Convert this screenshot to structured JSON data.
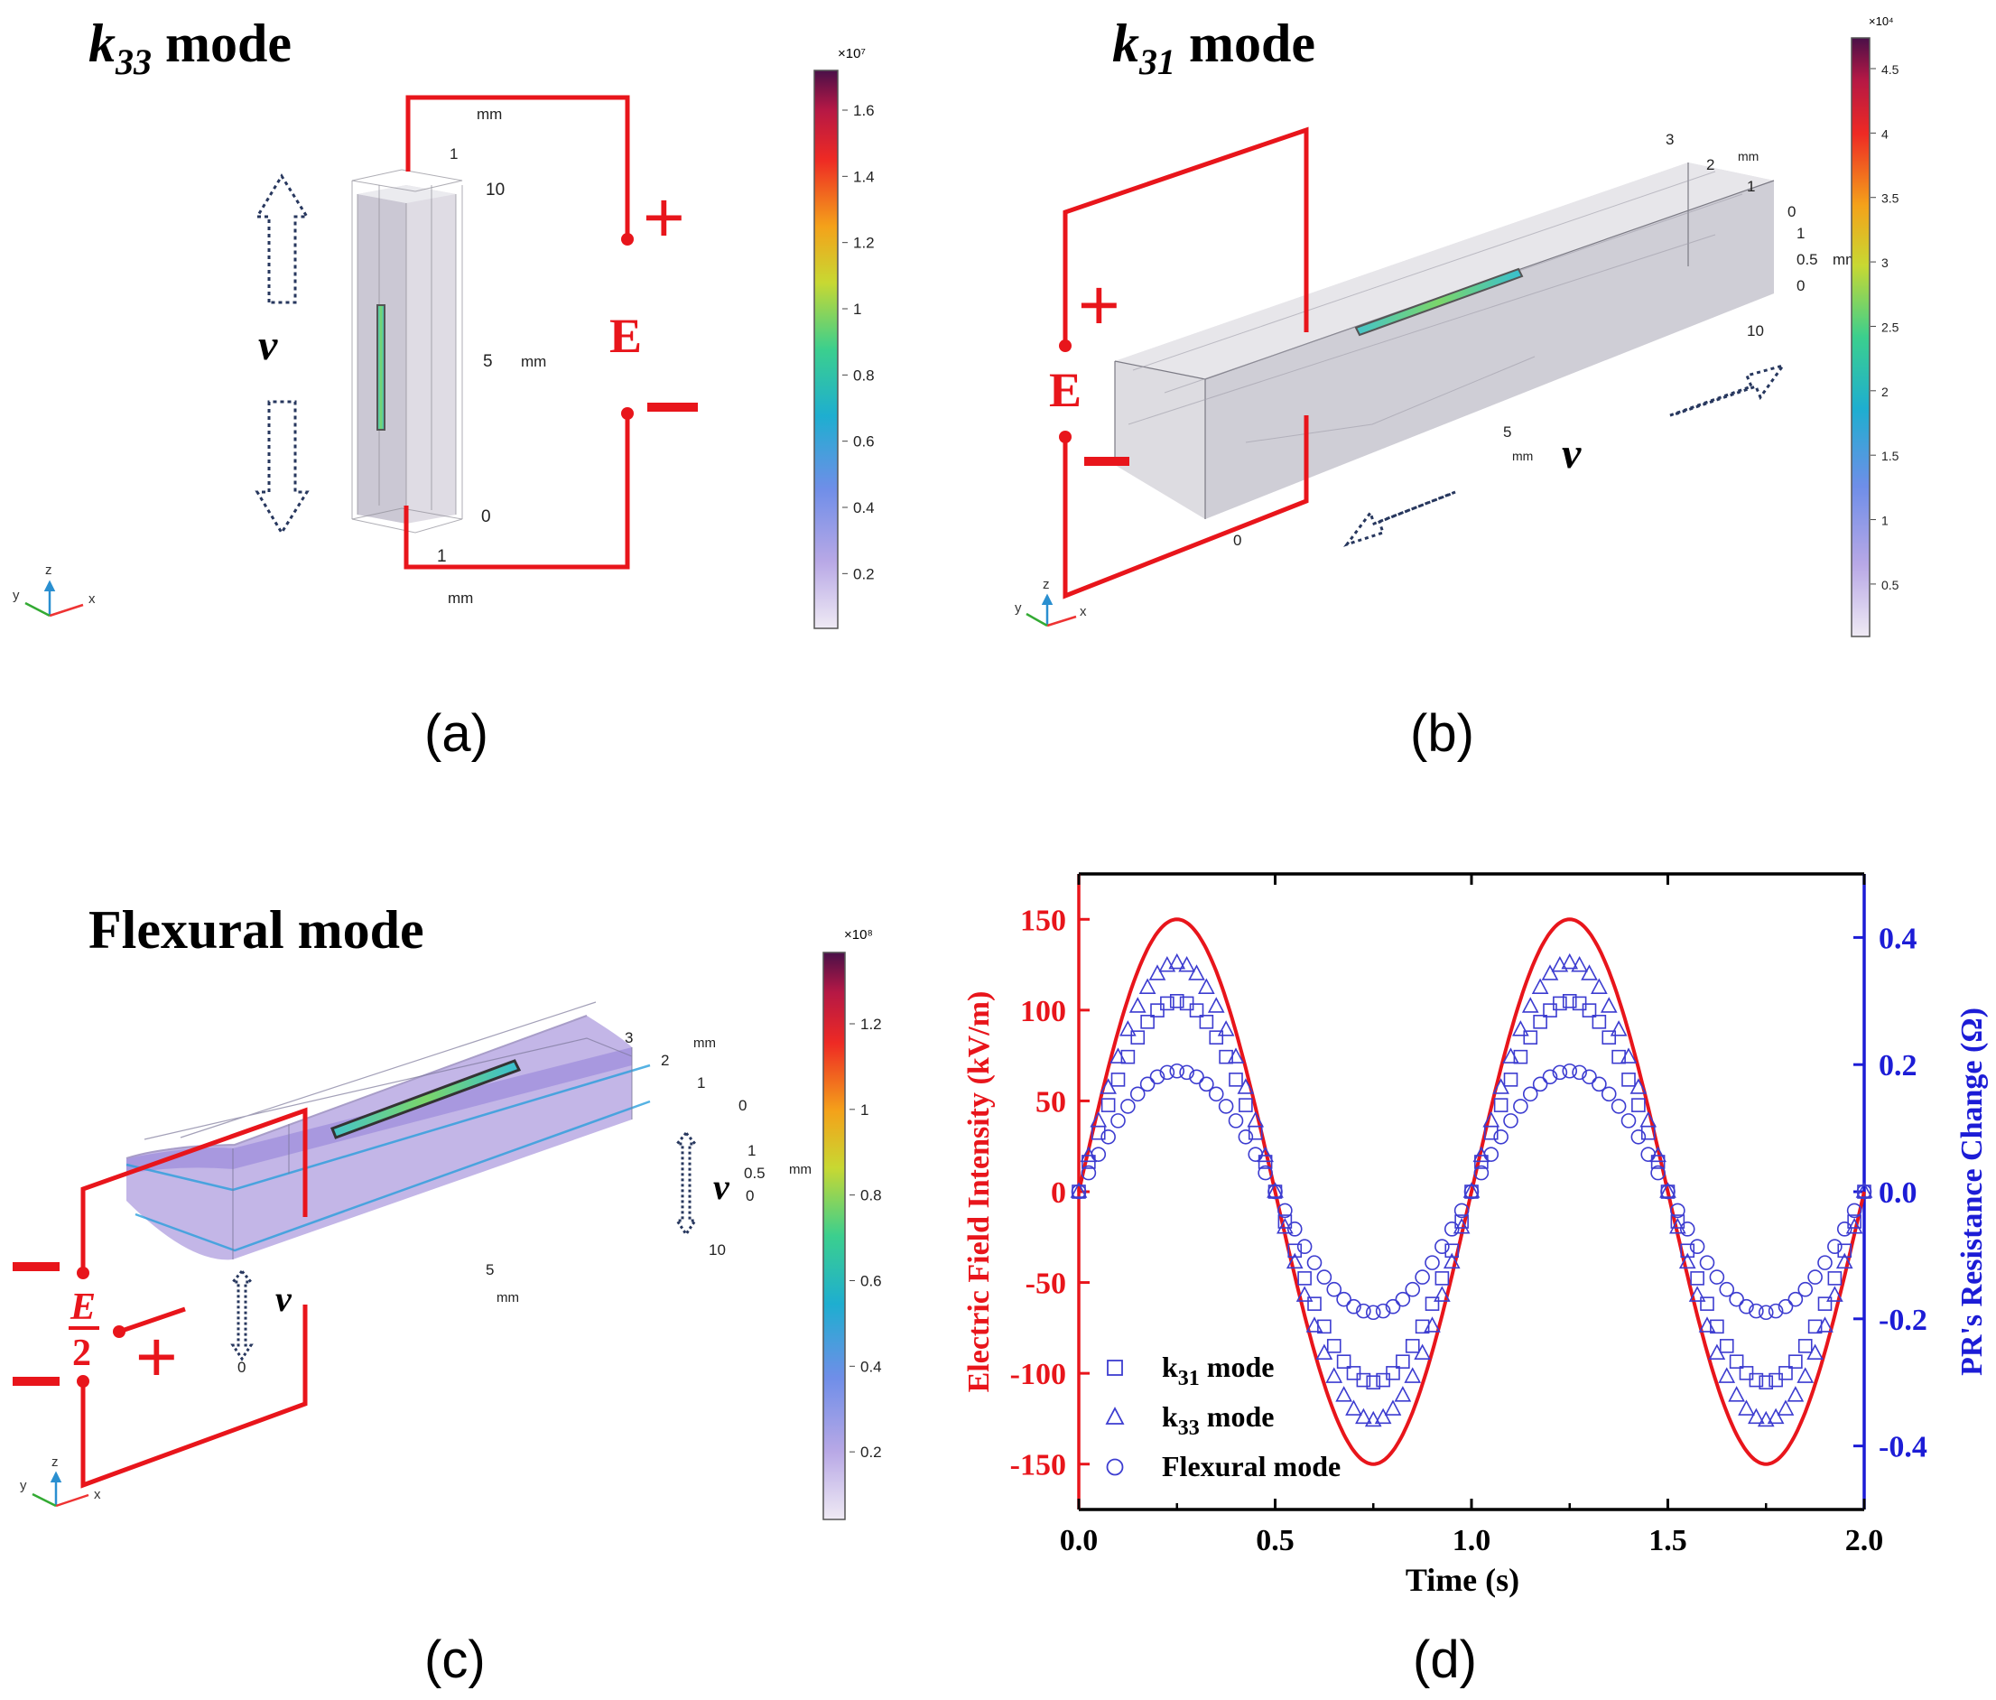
{
  "panels": {
    "a": {
      "title_k": "k",
      "title_sub": "33",
      "title_rest": " mode",
      "caption": "(a)",
      "velocity": "v",
      "field": "E",
      "plus": "+",
      "minus": "−",
      "axis": {
        "mm_top": "mm",
        "mm_mid": "mm",
        "mm_bottom": "mm",
        "t1": "1",
        "t10": "10",
        "t5": "5",
        "t0": "0",
        "t1b": "1"
      },
      "triad": {
        "x": "x",
        "y": "y",
        "z": "z"
      },
      "colorbar": {
        "exponent": "×10⁷",
        "ticks": [
          "1.6",
          "1.4",
          "1.2",
          "1",
          "0.8",
          "0.6",
          "0.4",
          "0.2"
        ]
      }
    },
    "b": {
      "title_k": "k",
      "title_sub": "31",
      "title_rest": " mode",
      "caption": "(b)",
      "velocity": "v",
      "field": "E",
      "plus": "+",
      "minus": "−",
      "axis": {
        "t3": "3",
        "t2": "2",
        "mm1": "mm",
        "t1": "1",
        "t0a": "0",
        "t1b": "1",
        "t05": "0.5",
        "mm2": "mm",
        "t0b": "0",
        "t10": "10",
        "t5": "5",
        "mm3": "mm",
        "t0c": "0"
      },
      "triad": {
        "x": "x",
        "y": "y",
        "z": "z"
      },
      "colorbar": {
        "exponent": "×10⁴",
        "ticks": [
          "4.5",
          "4",
          "3.5",
          "3",
          "2.5",
          "2",
          "1.5",
          "1",
          "0.5"
        ]
      }
    },
    "c": {
      "title": "Flexural mode",
      "caption": "(c)",
      "velocity": "v",
      "field_num": "E",
      "field_den": "2",
      "plus": "+",
      "minus": "−",
      "axis": {
        "t3": "3",
        "t2": "2",
        "mm1": "mm",
        "t1": "1",
        "t0a": "0",
        "t1b": "1",
        "t05": "0.5",
        "mm2": "mm",
        "t0b": "0",
        "t10": "10",
        "t5": "5",
        "mm3": "mm",
        "t0c": "0"
      },
      "triad": {
        "x": "x",
        "y": "y",
        "z": "z"
      },
      "colorbar": {
        "exponent": "×10⁸",
        "ticks": [
          "1.2",
          "1",
          "0.8",
          "0.6",
          "0.4",
          "0.2"
        ]
      }
    },
    "d": {
      "caption": "(d)"
    }
  },
  "chart_data": {
    "type": "line",
    "xlabel": "Time (s)",
    "ylabel_left": "Electric Field Intensity (kV/m)",
    "ylabel_right": "PR's Resistance Change (Ω)",
    "xlim": [
      0.0,
      2.0
    ],
    "ylim_left": [
      -175,
      175
    ],
    "ylim_right": [
      -0.5,
      0.5
    ],
    "x_ticks": [
      "0.0",
      "0.5",
      "1.0",
      "1.5",
      "2.0"
    ],
    "y_ticks_left": [
      "150",
      "100",
      "50",
      "0",
      "-50",
      "-100",
      "-150"
    ],
    "y_ticks_right": [
      "0.4",
      "0.2",
      "0.0",
      "-0.2",
      "-0.4"
    ],
    "colors": {
      "left_axis": "#e8151b",
      "right_axis": "#1c1cd6",
      "markers": "#3c3cd0"
    },
    "series": [
      {
        "name": "Electric field",
        "axis": "left",
        "style": "line",
        "amplitude": 150,
        "frequency_hz": 1
      },
      {
        "name": "k31 mode",
        "axis": "right",
        "marker": "square",
        "amplitude": 0.3,
        "frequency_hz": 1
      },
      {
        "name": "k33 mode",
        "axis": "right",
        "marker": "triangle",
        "amplitude": 0.36,
        "frequency_hz": 1
      },
      {
        "name": "Flexural mode",
        "axis": "right",
        "marker": "circle",
        "amplitude": 0.19,
        "frequency_hz": 1
      }
    ],
    "legend": [
      {
        "base": "k",
        "sub": "31",
        "rest": " mode",
        "marker": "square"
      },
      {
        "base": "k",
        "sub": "33",
        "rest": " mode",
        "marker": "triangle"
      },
      {
        "base": "Flexural mode",
        "sub": "",
        "rest": "",
        "marker": "circle"
      }
    ],
    "legend_position": "bottom-left",
    "marker_step_s": 0.025
  }
}
